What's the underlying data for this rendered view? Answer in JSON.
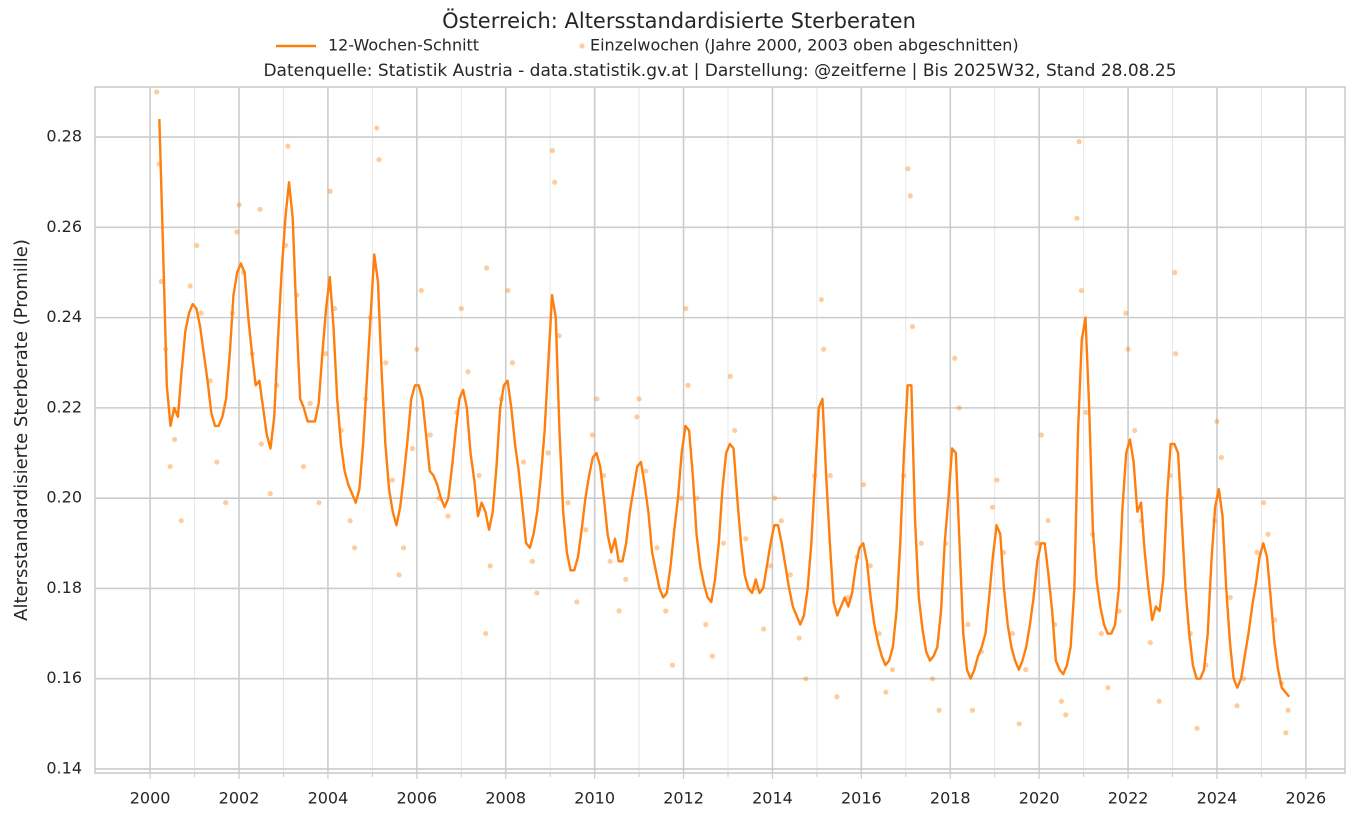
{
  "chart_data": {
    "type": "line",
    "title": "Österreich: Altersstandardisierte Sterberaten",
    "subtitle": "Datenquelle: Statistik Austria - data.statistik.gv.at | Darstellung: @zeitferne | Bis 2025W32, Stand 28.08.25",
    "y_label": "Altersstandardisierte Sterberate (Promille)",
    "xlim": [
      1998.76,
      2026.88
    ],
    "ylim": [
      0.1391,
      0.2911
    ],
    "xticks": [
      2000,
      2002,
      2004,
      2006,
      2008,
      2010,
      2012,
      2014,
      2016,
      2018,
      2020,
      2022,
      2024,
      2026
    ],
    "xminor_ticks": [
      2001,
      2003,
      2005,
      2007,
      2009,
      2011,
      2013,
      2015,
      2017,
      2019,
      2021,
      2023,
      2025
    ],
    "yticks": [
      {
        "value": 0.14,
        "label": "0.14"
      },
      {
        "value": 0.16,
        "label": "0.16"
      },
      {
        "value": 0.18,
        "label": "0.18"
      },
      {
        "value": 0.2,
        "label": "0.20"
      },
      {
        "value": 0.22,
        "label": "0.22"
      },
      {
        "value": 0.24,
        "label": "0.24"
      },
      {
        "value": 0.26,
        "label": "0.26"
      },
      {
        "value": 0.28,
        "label": "0.28"
      }
    ],
    "grid": true,
    "legend": "top",
    "series": [
      {
        "name": "12-Wochen-Schnitt",
        "type": "line",
        "color": "#ff7f0e",
        "x": [
          2000.208,
          2000.292,
          2000.375,
          2000.458,
          2000.542,
          2000.625,
          2000.708,
          2000.792,
          2000.875,
          2000.958,
          2001.042,
          2001.125,
          2001.208,
          2001.292,
          2001.375,
          2001.458,
          2001.542,
          2001.625,
          2001.708,
          2001.792,
          2001.875,
          2001.958,
          2002.042,
          2002.125,
          2002.208,
          2002.292,
          2002.375,
          2002.458,
          2002.542,
          2002.625,
          2002.708,
          2002.792,
          2002.875,
          2002.958,
          2003.042,
          2003.125,
          2003.208,
          2003.292,
          2003.375,
          2003.458,
          2003.542,
          2003.625,
          2003.708,
          2003.792,
          2003.875,
          2003.958,
          2004.042,
          2004.125,
          2004.208,
          2004.292,
          2004.375,
          2004.458,
          2004.542,
          2004.625,
          2004.708,
          2004.792,
          2004.875,
          2004.958,
          2005.042,
          2005.125,
          2005.208,
          2005.292,
          2005.375,
          2005.458,
          2005.542,
          2005.625,
          2005.708,
          2005.792,
          2005.875,
          2005.958,
          2006.042,
          2006.125,
          2006.208,
          2006.292,
          2006.375,
          2006.458,
          2006.542,
          2006.625,
          2006.708,
          2006.792,
          2006.875,
          2006.958,
          2007.042,
          2007.125,
          2007.208,
          2007.292,
          2007.375,
          2007.458,
          2007.542,
          2007.625,
          2007.708,
          2007.792,
          2007.875,
          2007.958,
          2008.042,
          2008.125,
          2008.208,
          2008.292,
          2008.375,
          2008.458,
          2008.542,
          2008.625,
          2008.708,
          2008.792,
          2008.875,
          2008.958,
          2009.042,
          2009.125,
          2009.208,
          2009.292,
          2009.375,
          2009.458,
          2009.542,
          2009.625,
          2009.708,
          2009.792,
          2009.875,
          2009.958,
          2010.042,
          2010.125,
          2010.208,
          2010.292,
          2010.375,
          2010.458,
          2010.542,
          2010.625,
          2010.708,
          2010.792,
          2010.875,
          2010.958,
          2011.042,
          2011.125,
          2011.208,
          2011.292,
          2011.375,
          2011.458,
          2011.542,
          2011.625,
          2011.708,
          2011.792,
          2011.875,
          2011.958,
          2012.042,
          2012.125,
          2012.208,
          2012.292,
          2012.375,
          2012.458,
          2012.542,
          2012.625,
          2012.708,
          2012.792,
          2012.875,
          2012.958,
          2013.042,
          2013.125,
          2013.208,
          2013.292,
          2013.375,
          2013.458,
          2013.542,
          2013.625,
          2013.708,
          2013.792,
          2013.875,
          2013.958,
          2014.042,
          2014.125,
          2014.208,
          2014.292,
          2014.375,
          2014.458,
          2014.542,
          2014.625,
          2014.708,
          2014.792,
          2014.875,
          2014.958,
          2015.042,
          2015.125,
          2015.208,
          2015.292,
          2015.375,
          2015.458,
          2015.542,
          2015.625,
          2015.708,
          2015.792,
          2015.875,
          2015.958,
          2016.042,
          2016.125,
          2016.208,
          2016.292,
          2016.375,
          2016.458,
          2016.542,
          2016.625,
          2016.708,
          2016.792,
          2016.875,
          2016.958,
          2017.042,
          2017.125,
          2017.208,
          2017.292,
          2017.375,
          2017.458,
          2017.542,
          2017.625,
          2017.708,
          2017.792,
          2017.875,
          2017.958,
          2018.042,
          2018.125,
          2018.208,
          2018.292,
          2018.375,
          2018.458,
          2018.542,
          2018.625,
          2018.708,
          2018.792,
          2018.875,
          2018.958,
          2019.042,
          2019.125,
          2019.208,
          2019.292,
          2019.375,
          2019.458,
          2019.542,
          2019.625,
          2019.708,
          2019.792,
          2019.875,
          2019.958,
          2020.042,
          2020.125,
          2020.208,
          2020.292,
          2020.375,
          2020.458,
          2020.542,
          2020.625,
          2020.708,
          2020.792,
          2020.875,
          2020.958,
          2021.042,
          2021.125,
          2021.208,
          2021.292,
          2021.375,
          2021.458,
          2021.542,
          2021.625,
          2021.708,
          2021.792,
          2021.875,
          2021.958,
          2022.042,
          2022.125,
          2022.208,
          2022.292,
          2022.375,
          2022.458,
          2022.542,
          2022.625,
          2022.708,
          2022.792,
          2022.875,
          2022.958,
          2023.042,
          2023.125,
          2023.208,
          2023.292,
          2023.375,
          2023.458,
          2023.542,
          2023.625,
          2023.708,
          2023.792,
          2023.875,
          2023.958,
          2024.042,
          2024.125,
          2024.208,
          2024.292,
          2024.375,
          2024.458,
          2024.542,
          2024.625,
          2024.708,
          2024.792,
          2024.875,
          2024.958,
          2025.042,
          2025.125,
          2025.208,
          2025.292,
          2025.375,
          2025.458,
          2025.542,
          2025.625
        ],
        "values": [
          0.284,
          0.255,
          0.225,
          0.216,
          0.22,
          0.218,
          0.228,
          0.237,
          0.241,
          0.243,
          0.242,
          0.238,
          0.232,
          0.226,
          0.219,
          0.216,
          0.216,
          0.218,
          0.222,
          0.232,
          0.245,
          0.25,
          0.252,
          0.25,
          0.24,
          0.232,
          0.225,
          0.226,
          0.22,
          0.214,
          0.211,
          0.218,
          0.235,
          0.25,
          0.262,
          0.27,
          0.262,
          0.24,
          0.222,
          0.22,
          0.217,
          0.217,
          0.217,
          0.221,
          0.232,
          0.242,
          0.249,
          0.238,
          0.222,
          0.212,
          0.206,
          0.203,
          0.201,
          0.199,
          0.202,
          0.212,
          0.226,
          0.24,
          0.254,
          0.248,
          0.228,
          0.212,
          0.202,
          0.197,
          0.194,
          0.198,
          0.205,
          0.213,
          0.222,
          0.225,
          0.225,
          0.222,
          0.214,
          0.206,
          0.205,
          0.203,
          0.2,
          0.198,
          0.2,
          0.207,
          0.215,
          0.222,
          0.224,
          0.22,
          0.21,
          0.204,
          0.196,
          0.199,
          0.197,
          0.193,
          0.197,
          0.207,
          0.22,
          0.225,
          0.226,
          0.22,
          0.212,
          0.206,
          0.198,
          0.19,
          0.189,
          0.192,
          0.197,
          0.205,
          0.215,
          0.23,
          0.245,
          0.24,
          0.215,
          0.197,
          0.188,
          0.184,
          0.184,
          0.187,
          0.193,
          0.2,
          0.205,
          0.209,
          0.21,
          0.207,
          0.2,
          0.192,
          0.188,
          0.191,
          0.186,
          0.186,
          0.19,
          0.197,
          0.202,
          0.207,
          0.208,
          0.203,
          0.197,
          0.188,
          0.184,
          0.18,
          0.178,
          0.179,
          0.185,
          0.193,
          0.2,
          0.21,
          0.216,
          0.215,
          0.205,
          0.192,
          0.185,
          0.181,
          0.178,
          0.177,
          0.182,
          0.19,
          0.202,
          0.21,
          0.212,
          0.211,
          0.2,
          0.19,
          0.183,
          0.18,
          0.179,
          0.182,
          0.179,
          0.18,
          0.185,
          0.19,
          0.194,
          0.194,
          0.19,
          0.185,
          0.18,
          0.176,
          0.174,
          0.172,
          0.174,
          0.18,
          0.19,
          0.205,
          0.22,
          0.222,
          0.205,
          0.19,
          0.177,
          0.174,
          0.176,
          0.178,
          0.176,
          0.179,
          0.185,
          0.189,
          0.19,
          0.186,
          0.178,
          0.172,
          0.168,
          0.165,
          0.163,
          0.164,
          0.167,
          0.175,
          0.19,
          0.21,
          0.225,
          0.225,
          0.195,
          0.178,
          0.171,
          0.166,
          0.164,
          0.165,
          0.167,
          0.175,
          0.19,
          0.2,
          0.211,
          0.21,
          0.19,
          0.17,
          0.162,
          0.16,
          0.162,
          0.165,
          0.167,
          0.17,
          0.178,
          0.187,
          0.194,
          0.192,
          0.18,
          0.172,
          0.167,
          0.164,
          0.162,
          0.164,
          0.167,
          0.172,
          0.178,
          0.186,
          0.19,
          0.19,
          0.183,
          0.175,
          0.164,
          0.162,
          0.161,
          0.163,
          0.167,
          0.18,
          0.215,
          0.235,
          0.24,
          0.22,
          0.193,
          0.182,
          0.176,
          0.172,
          0.17,
          0.17,
          0.172,
          0.18,
          0.198,
          0.21,
          0.213,
          0.208,
          0.197,
          0.199,
          0.188,
          0.18,
          0.173,
          0.176,
          0.175,
          0.182,
          0.2,
          0.212,
          0.212,
          0.21,
          0.195,
          0.18,
          0.17,
          0.163,
          0.16,
          0.16,
          0.162,
          0.17,
          0.186,
          0.198,
          0.202,
          0.196,
          0.18,
          0.168,
          0.16,
          0.158,
          0.16,
          0.165,
          0.17,
          0.176,
          0.181,
          0.187,
          0.19,
          0.187,
          0.178,
          0.168,
          0.162,
          0.158,
          0.157,
          0.156
        ]
      },
      {
        "name": "Einzelwochen (Jahre 2000, 2003 oben abgeschnitten)",
        "type": "scatter",
        "color": "#ff7f0e",
        "x": [
          2000.15,
          2000.2,
          2000.25,
          2000.35,
          2000.45,
          2000.55,
          2000.7,
          2000.9,
          2001.05,
          2001.15,
          2001.35,
          2001.5,
          2001.7,
          2001.85,
          2001.95,
          2002.0,
          2002.1,
          2002.3,
          2002.5,
          2002.7,
          2002.85,
          2002.47,
          2003.1,
          2003.05,
          2003.3,
          2003.45,
          2003.6,
          2003.8,
          2003.95,
          2004.05,
          2004.15,
          2004.3,
          2004.5,
          2004.6,
          2004.85,
          2004.95,
          2005.1,
          2005.15,
          2005.3,
          2005.45,
          2005.6,
          2005.7,
          2005.9,
          2006.0,
          2006.1,
          2006.3,
          2006.5,
          2006.7,
          2006.9,
          2007.0,
          2007.15,
          2007.4,
          2007.55,
          2007.65,
          2007.9,
          2007.57,
          2008.05,
          2008.15,
          2008.4,
          2008.6,
          2008.7,
          2008.95,
          2009.05,
          2009.1,
          2009.2,
          2009.4,
          2009.6,
          2009.8,
          2009.95,
          2010.05,
          2010.2,
          2010.35,
          2010.55,
          2010.7,
          2010.95,
          2011.0,
          2011.15,
          2011.4,
          2011.6,
          2011.75,
          2011.95,
          2012.05,
          2012.1,
          2012.3,
          2012.5,
          2012.65,
          2012.9,
          2013.05,
          2013.15,
          2013.4,
          2013.6,
          2013.8,
          2013.95,
          2014.05,
          2014.2,
          2014.4,
          2014.6,
          2014.75,
          2014.95,
          2015.1,
          2015.15,
          2015.3,
          2015.45,
          2015.7,
          2015.9,
          2016.05,
          2016.2,
          2016.4,
          2016.55,
          2016.7,
          2016.95,
          2017.05,
          2017.1,
          2017.15,
          2017.35,
          2017.6,
          2017.75,
          2017.9,
          2018.1,
          2018.2,
          2018.4,
          2018.5,
          2018.7,
          2018.95,
          2019.05,
          2019.2,
          2019.4,
          2019.55,
          2019.7,
          2019.95,
          2020.05,
          2020.2,
          2020.35,
          2020.5,
          2020.6,
          2020.85,
          2020.9,
          2020.95,
          2021.05,
          2021.2,
          2021.4,
          2021.55,
          2021.8,
          2021.95,
          2022.0,
          2022.15,
          2022.3,
          2022.5,
          2022.7,
          2022.95,
          2023.05,
          2023.07,
          2023.2,
          2023.4,
          2023.55,
          2023.75,
          2023.95,
          2024.0,
          2024.1,
          2024.3,
          2024.45,
          2024.6,
          2024.9,
          2025.05,
          2025.15,
          2025.3,
          2025.45,
          2025.55,
          2025.6
        ],
        "values": [
          0.29,
          0.274,
          0.248,
          0.233,
          0.207,
          0.213,
          0.195,
          0.247,
          0.256,
          0.241,
          0.226,
          0.208,
          0.199,
          0.241,
          0.259,
          0.265,
          0.25,
          0.232,
          0.212,
          0.201,
          0.225,
          0.264,
          0.278,
          0.256,
          0.245,
          0.207,
          0.221,
          0.199,
          0.232,
          0.268,
          0.242,
          0.215,
          0.195,
          0.189,
          0.222,
          0.24,
          0.282,
          0.275,
          0.23,
          0.204,
          0.183,
          0.189,
          0.211,
          0.233,
          0.246,
          0.214,
          0.2,
          0.196,
          0.219,
          0.242,
          0.228,
          0.205,
          0.17,
          0.185,
          0.222,
          0.251,
          0.246,
          0.23,
          0.208,
          0.186,
          0.179,
          0.21,
          0.277,
          0.27,
          0.236,
          0.199,
          0.177,
          0.193,
          0.214,
          0.222,
          0.205,
          0.186,
          0.175,
          0.182,
          0.218,
          0.222,
          0.206,
          0.189,
          0.175,
          0.163,
          0.2,
          0.242,
          0.225,
          0.2,
          0.172,
          0.165,
          0.19,
          0.227,
          0.215,
          0.191,
          0.18,
          0.171,
          0.185,
          0.2,
          0.195,
          0.183,
          0.169,
          0.16,
          0.205,
          0.244,
          0.233,
          0.205,
          0.156,
          0.178,
          0.187,
          0.203,
          0.185,
          0.17,
          0.157,
          0.162,
          0.205,
          0.273,
          0.267,
          0.238,
          0.19,
          0.16,
          0.153,
          0.19,
          0.231,
          0.22,
          0.172,
          0.153,
          0.166,
          0.198,
          0.204,
          0.188,
          0.17,
          0.15,
          0.162,
          0.19,
          0.214,
          0.195,
          0.172,
          0.155,
          0.152,
          0.262,
          0.279,
          0.246,
          0.219,
          0.192,
          0.17,
          0.158,
          0.175,
          0.241,
          0.233,
          0.215,
          0.195,
          0.168,
          0.155,
          0.205,
          0.25,
          0.232,
          0.2,
          0.17,
          0.149,
          0.163,
          0.195,
          0.217,
          0.209,
          0.178,
          0.154,
          0.16,
          0.188,
          0.199,
          0.192,
          0.173,
          0.159,
          0.148,
          0.153
        ]
      }
    ]
  }
}
